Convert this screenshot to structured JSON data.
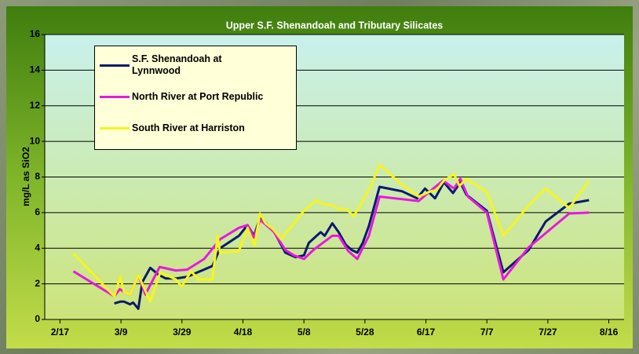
{
  "chart_data": {
    "type": "line",
    "title": "Upper S.F. Shenandoah and Tributary Silicates",
    "y_label": "mg/L as SiO2",
    "xlim": [
      43,
      233
    ],
    "xticks": [
      {
        "value": 48,
        "label": "2/17"
      },
      {
        "value": 68,
        "label": "3/9"
      },
      {
        "value": 88,
        "label": "3/29"
      },
      {
        "value": 108,
        "label": "4/18"
      },
      {
        "value": 128,
        "label": "5/8"
      },
      {
        "value": 148,
        "label": "5/28"
      },
      {
        "value": 168,
        "label": "6/17"
      },
      {
        "value": 188,
        "label": "7/7"
      },
      {
        "value": 208,
        "label": "7/27"
      },
      {
        "value": 228,
        "label": "8/16"
      }
    ],
    "ylim": [
      0,
      16
    ],
    "yticks": [
      0,
      2,
      4,
      6,
      8,
      10,
      12,
      14,
      16
    ],
    "grid": true,
    "legend": "upper left",
    "series": [
      {
        "name": "S.F. Shenandoah at Lynnwood",
        "color": "#0a1a6e",
        "x": [
          65.8,
          67.8,
          69,
          71,
          72,
          73.7,
          75,
          77.6,
          80.4,
          82.7,
          86,
          89.7,
          98,
          100.5,
          106.7,
          109.5,
          111.6,
          113.6,
          118,
          121.9,
          125.2,
          128,
          129.6,
          133.5,
          134.8,
          137.3,
          139.4,
          141.7,
          143.7,
          145.5,
          147.3,
          149.3,
          152.8,
          160.2,
          165.1,
          167.7,
          171,
          173.9,
          176.9,
          179.3,
          181.3,
          188,
          193.4,
          201.7,
          207.3,
          215,
          221.5
        ],
        "values": [
          0.9,
          1.0,
          1.0,
          0.85,
          0.95,
          0.6,
          2.1,
          2.9,
          2.5,
          2.3,
          2.3,
          2.4,
          3.0,
          4.0,
          4.7,
          5.3,
          4.7,
          5.7,
          5.0,
          3.75,
          3.5,
          3.6,
          4.3,
          4.9,
          4.7,
          5.4,
          4.9,
          4.2,
          3.9,
          3.75,
          4.3,
          5.25,
          7.45,
          7.2,
          6.8,
          7.35,
          6.8,
          7.7,
          7.1,
          7.7,
          7.0,
          6.1,
          2.65,
          3.9,
          5.5,
          6.5,
          6.7
        ]
      },
      {
        "name": "North River at Port Republic",
        "color": "#e619e0",
        "x": [
          52.4,
          65.8,
          67.6,
          69,
          71,
          73.7,
          76,
          80.7,
          86,
          89.7,
          95.3,
          100.5,
          106.7,
          109.5,
          111.6,
          113.6,
          118,
          121.9,
          124.7,
          128,
          131.1,
          134.2,
          137.3,
          139.4,
          142.5,
          145.5,
          149.3,
          152.8,
          165.6,
          168.7,
          173.6,
          177.2,
          179.3,
          181.8,
          188,
          193.4,
          201.7,
          207.3,
          215,
          221.5
        ],
        "values": [
          2.7,
          1.3,
          1.7,
          1.55,
          1.4,
          2.5,
          1.4,
          2.95,
          2.75,
          2.8,
          3.4,
          4.5,
          5.15,
          5.3,
          4.6,
          5.6,
          4.95,
          3.9,
          3.6,
          3.4,
          3.9,
          4.3,
          4.7,
          4.7,
          3.85,
          3.4,
          4.7,
          6.9,
          6.65,
          7.1,
          7.8,
          7.35,
          7.9,
          6.9,
          6.0,
          2.25,
          4.05,
          4.85,
          5.95,
          6.0
        ]
      },
      {
        "name": "South River at Harriston",
        "color": "#f5f520",
        "x": [
          52.4,
          65.8,
          67.8,
          69,
          71,
          73.7,
          77.6,
          80.9,
          86,
          87.9,
          91,
          93.5,
          98,
          99.7,
          100.5,
          106.7,
          109.5,
          111.8,
          113.6,
          115.4,
          118,
          120.5,
          125.7,
          127.7,
          132.1,
          133.9,
          137.3,
          139.4,
          141.9,
          144.3,
          146.8,
          150.2,
          152.8,
          159.2,
          165.6,
          169.5,
          171.5,
          173.9,
          177.2,
          179,
          181.3,
          188,
          193.4,
          201.7,
          207.3,
          215,
          221.5
        ],
        "values": [
          3.7,
          1.3,
          2.4,
          1.55,
          1.4,
          2.5,
          1.0,
          2.65,
          2.25,
          1.85,
          2.7,
          2.25,
          2.25,
          4.7,
          3.75,
          3.85,
          5.15,
          4.15,
          5.95,
          5.4,
          5.05,
          4.5,
          5.6,
          6.05,
          6.7,
          6.5,
          6.4,
          6.2,
          6.2,
          5.8,
          6.5,
          7.6,
          8.7,
          7.7,
          6.9,
          7.2,
          7.25,
          7.8,
          8.15,
          7.5,
          7.9,
          7.15,
          4.7,
          6.4,
          7.35,
          6.25,
          7.8
        ]
      }
    ]
  }
}
